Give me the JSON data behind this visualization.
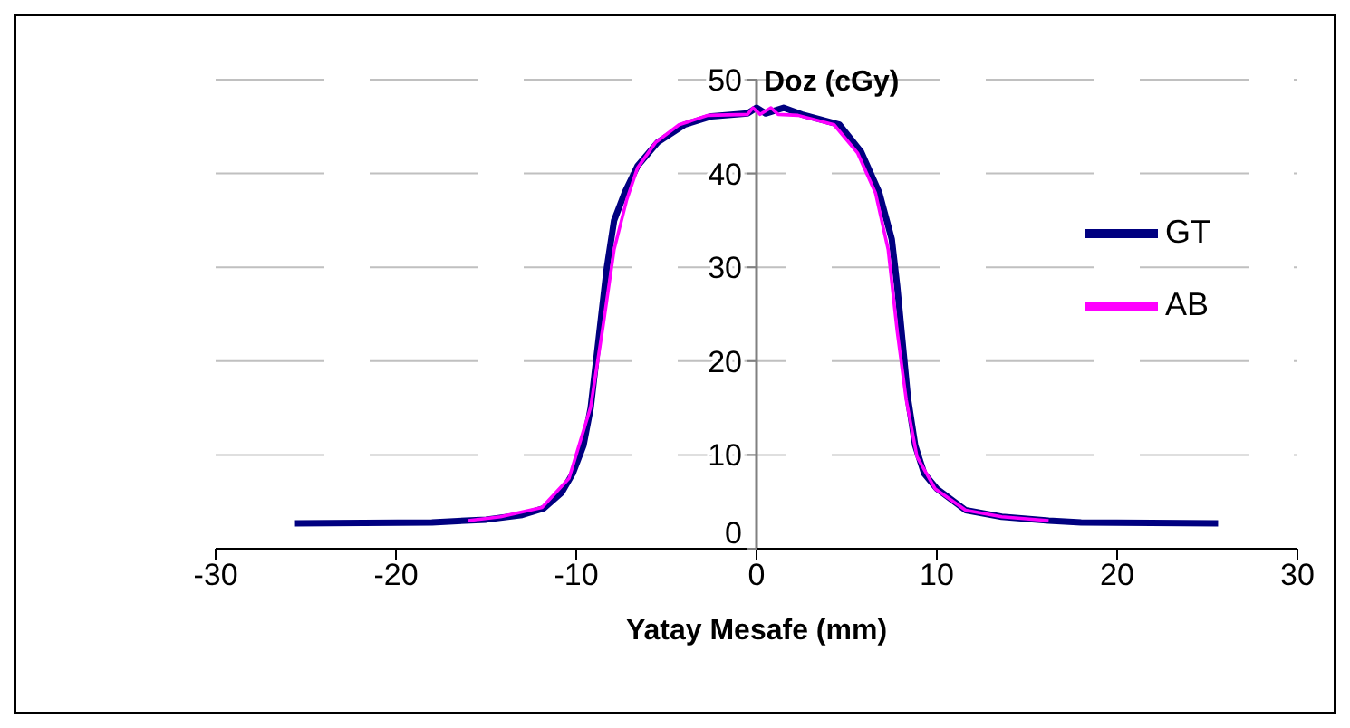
{
  "chart_data": {
    "type": "line",
    "xlabel": "Yatay Mesafe (mm)",
    "ylabel": "Doz (cGy)",
    "xlim": [
      -30,
      30
    ],
    "xticks": [
      -30,
      -20,
      -10,
      0,
      10,
      20,
      30
    ],
    "ylim": [
      0,
      50
    ],
    "yticks": [
      0,
      10,
      20,
      30,
      40,
      50
    ],
    "grid": "y",
    "legend": "right",
    "marker": "none",
    "line_style": "solid",
    "series": [
      {
        "name": "GT",
        "color": "#000080",
        "x": [
          -25.6,
          -18,
          -15,
          -13,
          -11.8,
          -10.8,
          -10.2,
          -9.6,
          -9.2,
          -8.9,
          -8.6,
          -8.3,
          -7.9,
          -7.3,
          -6.6,
          -5.5,
          -4,
          -2.5,
          -0.5,
          0,
          0.5,
          1.5,
          2.5,
          4.6,
          5.8,
          6.8,
          7.5,
          7.8,
          8.1,
          8.4,
          8.8,
          9.3,
          10,
          11.6,
          13.6,
          16.2,
          18,
          25.6
        ],
        "values": [
          2.7,
          2.8,
          3.1,
          3.6,
          4.3,
          6,
          8,
          11,
          15,
          20,
          25,
          30,
          35,
          38,
          40.8,
          43.3,
          45.2,
          46.1,
          46.4,
          47,
          46.4,
          47,
          46.3,
          45.2,
          42.3,
          38,
          33,
          28,
          22,
          16,
          11,
          8,
          6.4,
          4.1,
          3.4,
          3,
          2.8,
          2.7
        ]
      },
      {
        "name": "AB",
        "color": "#ff00ff",
        "x": [
          -16,
          -14.2,
          -11.9,
          -10.4,
          -9.2,
          -8.5,
          -7.9,
          -7.2,
          -6.6,
          -5.6,
          -4.3,
          -2.7,
          -0.5,
          -0.2,
          0.2,
          0.8,
          1.2,
          2.3,
          4.3,
          5.6,
          6.6,
          7.3,
          7.8,
          8.3,
          8.9,
          9.9,
          11.6,
          13.6,
          16.2
        ],
        "values": [
          3,
          3.4,
          4.4,
          7.5,
          15.1,
          23.9,
          31.9,
          37.2,
          40.6,
          43.3,
          45.2,
          46.2,
          46.3,
          47,
          46.3,
          47,
          46.3,
          46.2,
          45.2,
          42.2,
          37.9,
          31.9,
          23.2,
          15.9,
          9.8,
          6.4,
          4.1,
          3.4,
          3
        ]
      }
    ]
  }
}
